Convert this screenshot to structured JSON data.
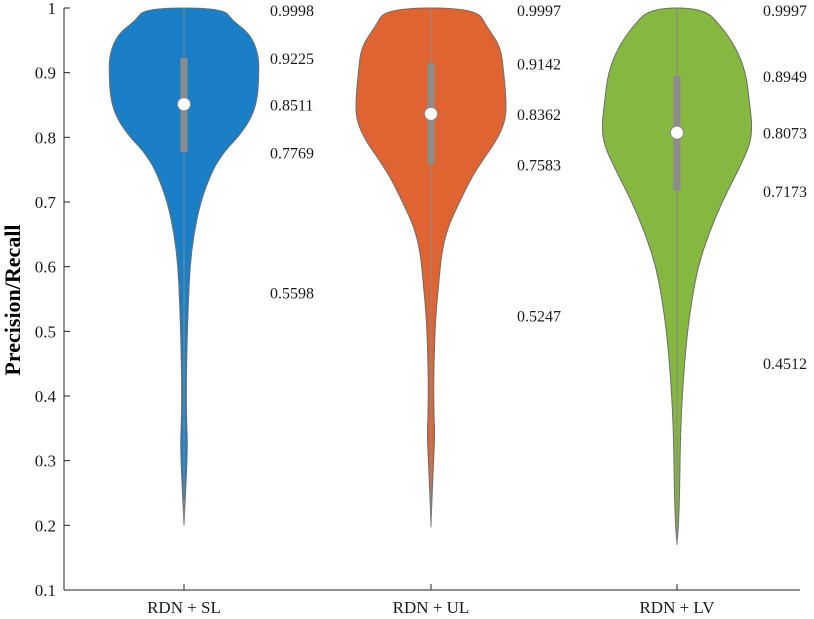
{
  "chart_data": {
    "type": "violin",
    "title": "",
    "xlabel": "",
    "ylabel": "Precision/Recall",
    "ylim": [
      0.1,
      1.0
    ],
    "yticks": [
      "0.1",
      "0.2",
      "0.3",
      "0.4",
      "0.5",
      "0.6",
      "0.7",
      "0.8",
      "0.9",
      "1"
    ],
    "grid": false,
    "categories": [
      "RDN + SL",
      "RDN + UL",
      "RDN + LV"
    ],
    "colors": [
      "#1a7fc6",
      "#e06432",
      "#86b740"
    ],
    "series": [
      {
        "category": "RDN + SL",
        "min": 0.2,
        "whisker_low": 0.5598,
        "q1": 0.7769,
        "median": 0.8511,
        "q3": 0.9225,
        "max": 0.9998,
        "labels": [
          "0.9998",
          "0.9225",
          "0.8511",
          "0.7769",
          "0.5598"
        ],
        "density": [
          [
            0.2,
            0.0
          ],
          [
            0.25,
            0.02
          ],
          [
            0.3,
            0.04
          ],
          [
            0.33,
            0.045
          ],
          [
            0.36,
            0.035
          ],
          [
            0.4,
            0.03
          ],
          [
            0.45,
            0.035
          ],
          [
            0.5,
            0.045
          ],
          [
            0.55,
            0.06
          ],
          [
            0.6,
            0.08
          ],
          [
            0.65,
            0.13
          ],
          [
            0.7,
            0.22
          ],
          [
            0.75,
            0.38
          ],
          [
            0.78,
            0.55
          ],
          [
            0.8,
            0.72
          ],
          [
            0.83,
            0.9
          ],
          [
            0.86,
            0.98
          ],
          [
            0.9,
            1.0
          ],
          [
            0.93,
            0.99
          ],
          [
            0.96,
            0.88
          ],
          [
            0.98,
            0.65
          ],
          [
            1.0,
            0.52
          ]
        ]
      },
      {
        "category": "RDN + UL",
        "min": 0.197,
        "whisker_low": 0.5247,
        "q1": 0.7583,
        "median": 0.8362,
        "q3": 0.9142,
        "max": 0.9997,
        "labels": [
          "0.9997",
          "0.9142",
          "0.8362",
          "0.7583",
          "0.5247"
        ],
        "density": [
          [
            0.197,
            0.0
          ],
          [
            0.25,
            0.015
          ],
          [
            0.3,
            0.035
          ],
          [
            0.34,
            0.05
          ],
          [
            0.37,
            0.04
          ],
          [
            0.42,
            0.035
          ],
          [
            0.47,
            0.045
          ],
          [
            0.52,
            0.06
          ],
          [
            0.57,
            0.1
          ],
          [
            0.62,
            0.14
          ],
          [
            0.66,
            0.22
          ],
          [
            0.7,
            0.38
          ],
          [
            0.74,
            0.55
          ],
          [
            0.77,
            0.72
          ],
          [
            0.8,
            0.9
          ],
          [
            0.83,
            1.0
          ],
          [
            0.86,
            1.0
          ],
          [
            0.9,
            0.97
          ],
          [
            0.94,
            0.93
          ],
          [
            0.97,
            0.75
          ],
          [
            1.0,
            0.6
          ]
        ]
      },
      {
        "category": "RDN + LV",
        "min": 0.17,
        "whisker_low": 0.4512,
        "q1": 0.7173,
        "median": 0.8073,
        "q3": 0.8949,
        "max": 0.9997,
        "labels": [
          "0.9997",
          "0.8949",
          "0.8073",
          "0.7173",
          "0.4512"
        ],
        "density": [
          [
            0.17,
            0.0
          ],
          [
            0.2,
            0.02
          ],
          [
            0.25,
            0.035
          ],
          [
            0.3,
            0.04
          ],
          [
            0.35,
            0.05
          ],
          [
            0.4,
            0.07
          ],
          [
            0.45,
            0.1
          ],
          [
            0.5,
            0.14
          ],
          [
            0.55,
            0.2
          ],
          [
            0.6,
            0.28
          ],
          [
            0.65,
            0.42
          ],
          [
            0.7,
            0.6
          ],
          [
            0.75,
            0.82
          ],
          [
            0.79,
            0.98
          ],
          [
            0.82,
            1.0
          ],
          [
            0.85,
            0.97
          ],
          [
            0.9,
            0.92
          ],
          [
            0.94,
            0.78
          ],
          [
            0.97,
            0.6
          ],
          [
            1.0,
            0.36
          ]
        ]
      }
    ]
  }
}
